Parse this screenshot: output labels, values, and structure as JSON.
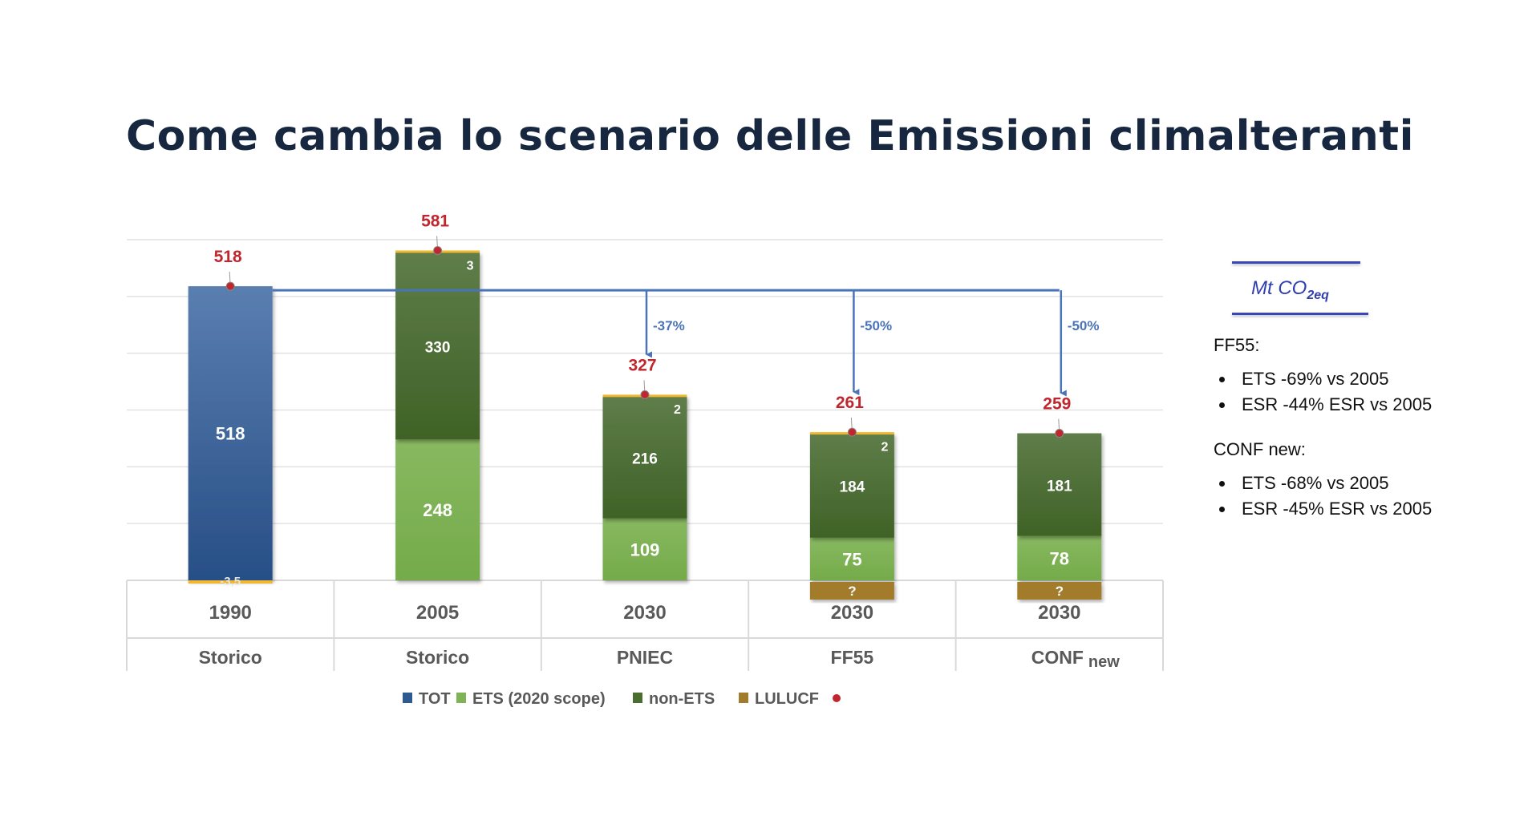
{
  "title": "Come cambia lo scenario delle Emissioni climalteranti",
  "unit": {
    "main": "Mt CO",
    "sub": "2eq"
  },
  "notes": [
    {
      "heading": "FF55:",
      "bullets": [
        "ETS -69% vs 2005",
        "ESR -44% ESR vs 2005"
      ]
    },
    {
      "heading": "CONF new:",
      "bullets": [
        "ETS -68% vs 2005",
        "ESR -45% ESR vs 2005"
      ]
    }
  ],
  "chart_data": {
    "type": "bar",
    "stacked": true,
    "ylim": [
      0,
      600
    ],
    "grid": true,
    "legend_position": "bottom",
    "categories": [
      {
        "year": "1990",
        "label": "Storico",
        "label_sub": ""
      },
      {
        "year": "2005",
        "label": "Storico",
        "label_sub": ""
      },
      {
        "year": "2030",
        "label": "PNIEC",
        "label_sub": ""
      },
      {
        "year": "2030",
        "label": "FF55",
        "label_sub": ""
      },
      {
        "year": "2030",
        "label": "CONF",
        "label_sub": "new"
      }
    ],
    "series": [
      {
        "name": "TOT",
        "color": "#2d5a92",
        "values": [
          518,
          null,
          null,
          null,
          null
        ],
        "labels": [
          "518",
          "",
          "",
          "",
          ""
        ]
      },
      {
        "name": "ETS (2020 scope)",
        "color": "#7fb356",
        "values": [
          null,
          248,
          109,
          75,
          78
        ],
        "labels": [
          "",
          "248",
          "109",
          "75",
          "78"
        ]
      },
      {
        "name": "non-ETS",
        "color": "#4a6e30",
        "values": [
          null,
          330,
          216,
          184,
          181
        ],
        "labels": [
          "",
          "330",
          "216",
          "184",
          "181"
        ]
      },
      {
        "name": "LULUCF",
        "color": "#a27c2a",
        "values": [
          -3.5,
          3,
          2,
          2,
          null
        ],
        "labels": [
          "-3,5",
          "3",
          "2",
          "2",
          ""
        ]
      },
      {
        "name": "LULUCF unknown",
        "color": "#a27c2a",
        "values": [
          null,
          null,
          null,
          "?",
          "?"
        ],
        "labels": [
          "",
          "",
          "",
          "?",
          "?"
        ]
      }
    ],
    "totals": {
      "color": "#c0262d",
      "values": [
        518,
        581,
        327,
        261,
        259
      ],
      "labels": [
        "518",
        "581",
        "327",
        "261",
        "259"
      ]
    },
    "reference_line": {
      "value": 518,
      "color": "#4a74b8"
    },
    "reductions": [
      {
        "category_index": 2,
        "label": "-37%"
      },
      {
        "category_index": 3,
        "label": "-50%"
      },
      {
        "category_index": 4,
        "label": "-50%"
      }
    ]
  }
}
